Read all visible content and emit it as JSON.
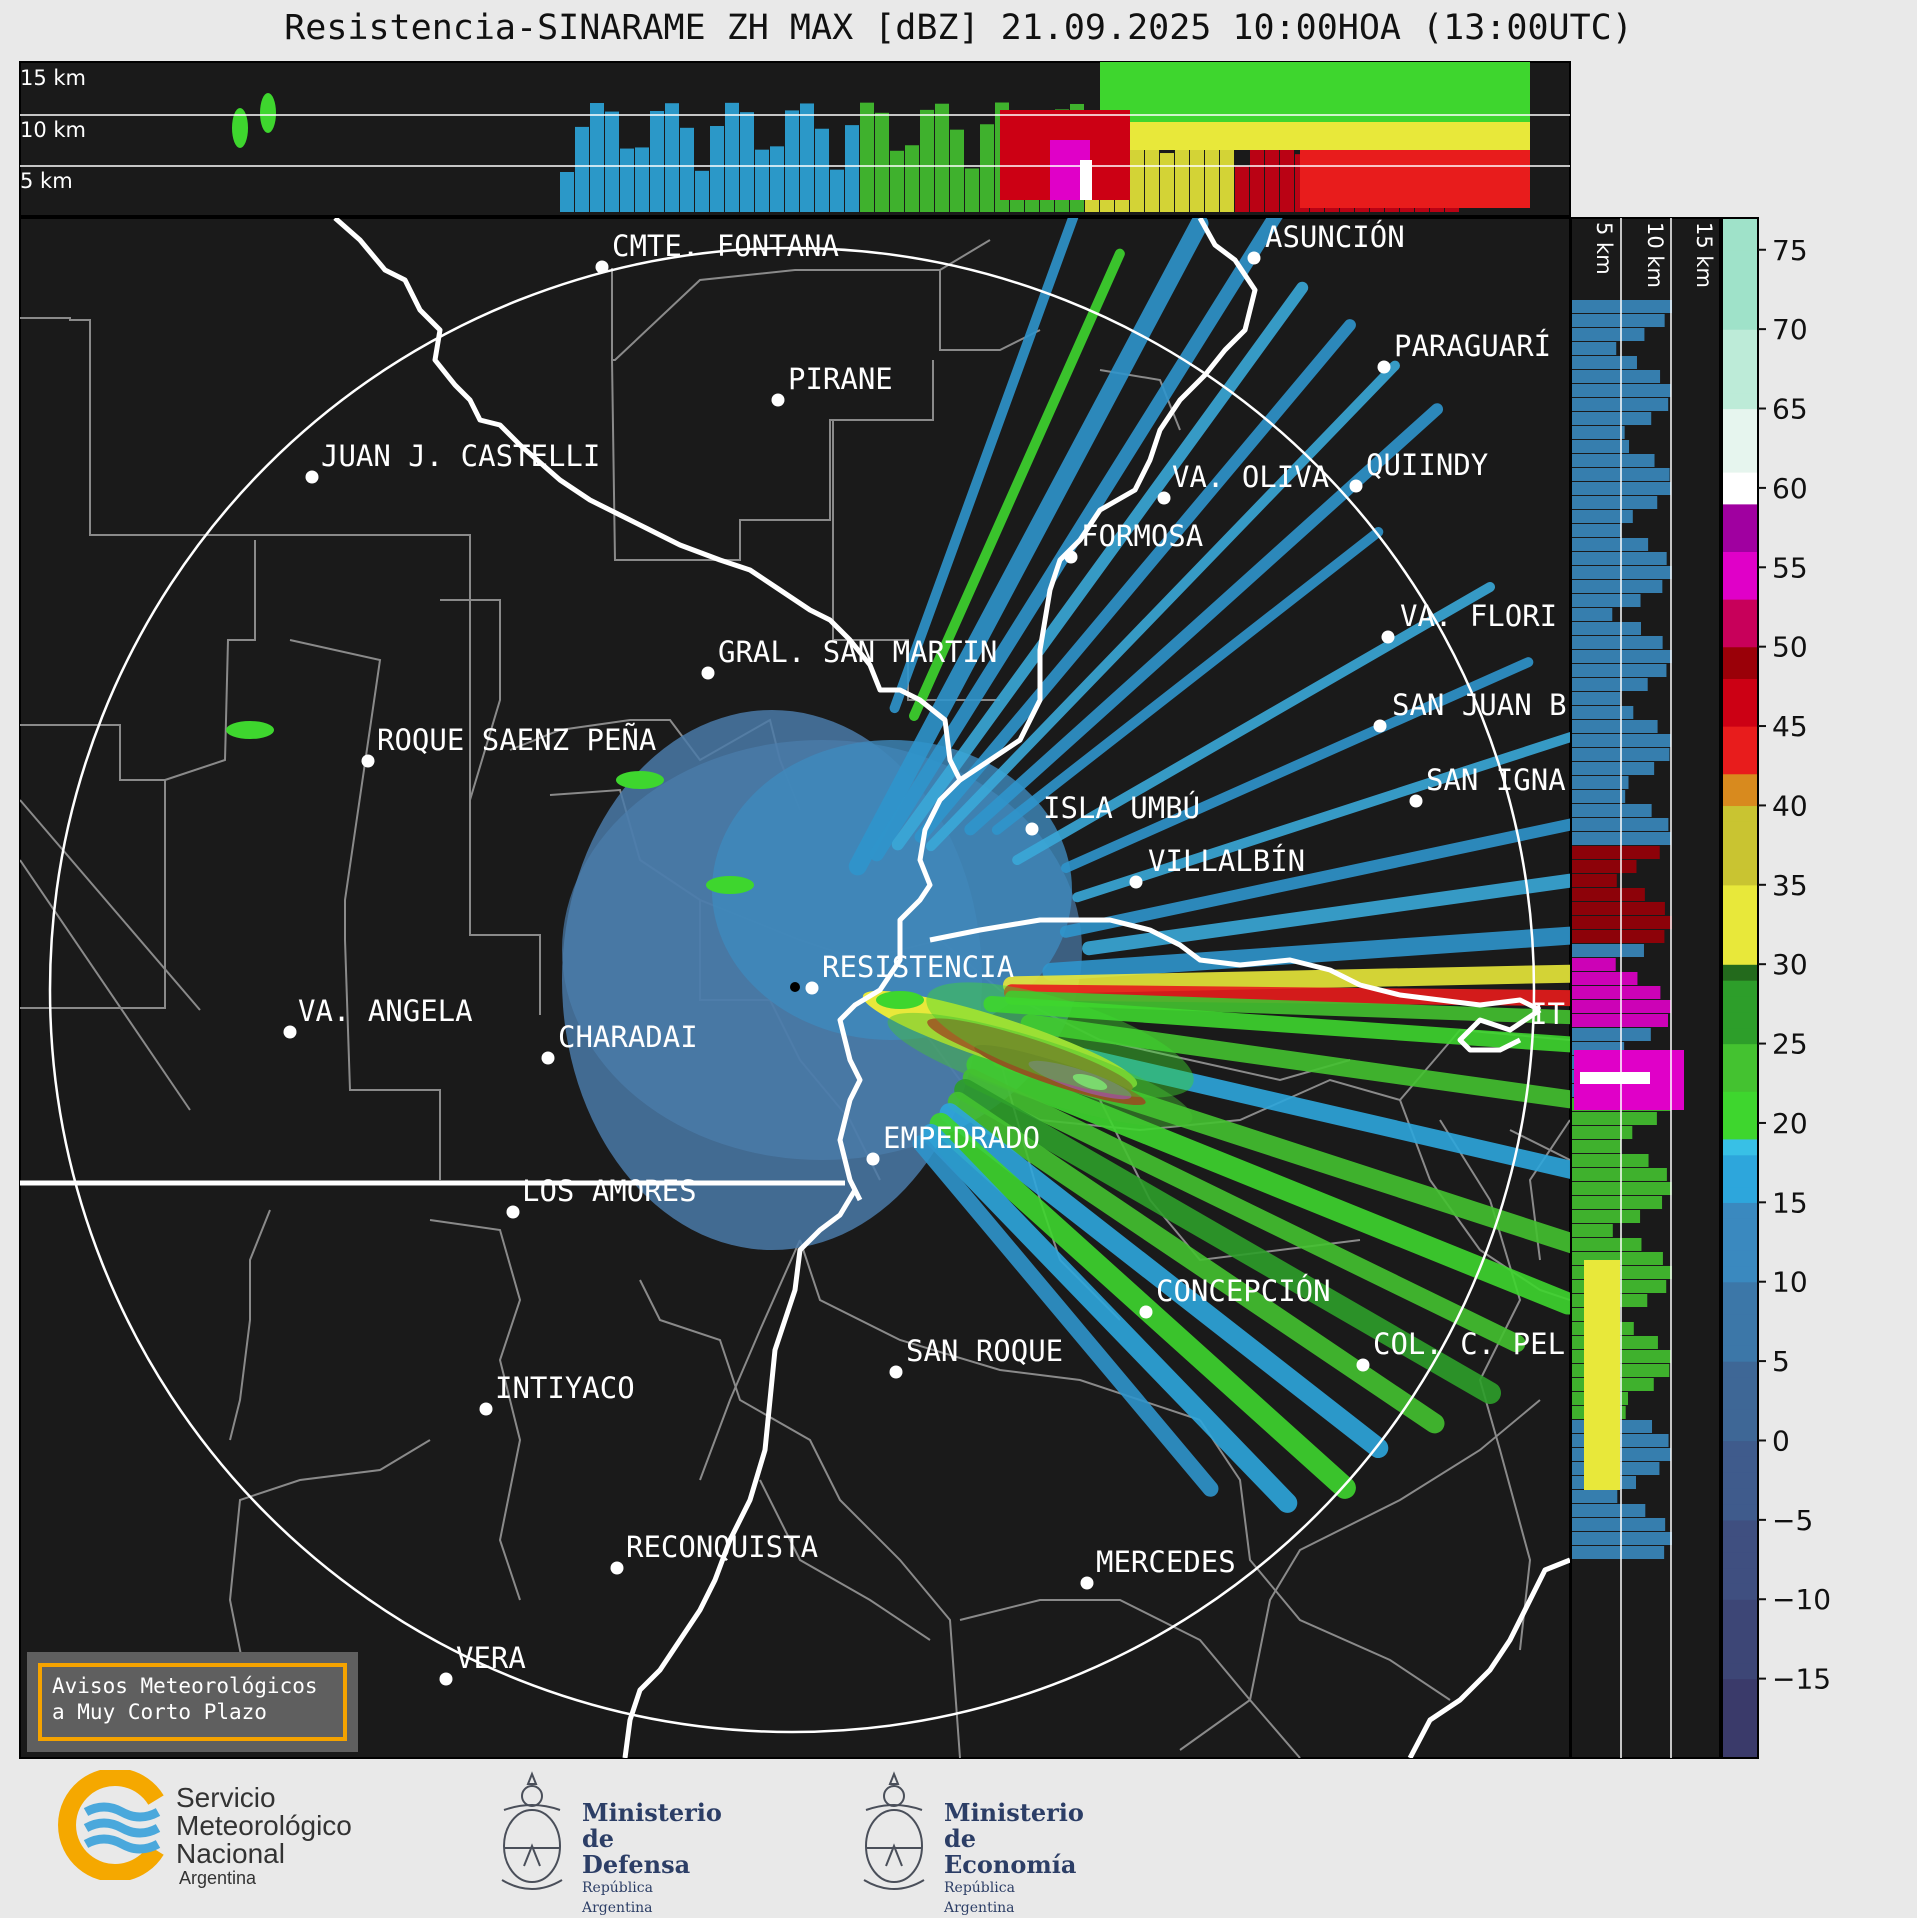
{
  "title": "Resistencia-SINARAME ZH MAX [dBZ] 21.09.2025 10:00HOA (13:00UTC)",
  "top_panel_labels": [
    "15 km",
    "10 km",
    "5 km"
  ],
  "side_panel_labels": [
    "5 km",
    "10 km",
    "15 km"
  ],
  "radar_site": "RESISTENCIA",
  "cities": [
    {
      "name": "CMTE. FONTANA"
    },
    {
      "name": "ASUNCIÓN"
    },
    {
      "name": "PARAGUARÍ"
    },
    {
      "name": "PIRANE"
    },
    {
      "name": "JUAN J. CASTELLI"
    },
    {
      "name": "VA. OLIVA"
    },
    {
      "name": "QUIINDY"
    },
    {
      "name": "FORMOSA"
    },
    {
      "name": "VA. FLORI"
    },
    {
      "name": "GRAL. SAN MARTIN"
    },
    {
      "name": "SAN JUAN B"
    },
    {
      "name": "ROQUE SAENZ PEÑA"
    },
    {
      "name": "SAN IGNA"
    },
    {
      "name": "ISLA UMBÚ"
    },
    {
      "name": "VILLALBÍN"
    },
    {
      "name": "RESISTENCIA"
    },
    {
      "name": "IT"
    },
    {
      "name": "VA. ANGELA"
    },
    {
      "name": "CHARADAI"
    },
    {
      "name": "EMPEDRADO"
    },
    {
      "name": "LOS AMORES"
    },
    {
      "name": "CONCEPCIÓN"
    },
    {
      "name": "COL. C. PEL"
    },
    {
      "name": "SAN ROQUE"
    },
    {
      "name": "INTIYACO"
    },
    {
      "name": "RECONQUISTA"
    },
    {
      "name": "MERCEDES"
    },
    {
      "name": "VERA"
    }
  ],
  "colorbar": {
    "unit": "dBZ",
    "ticks": [
      75,
      70,
      65,
      60,
      55,
      50,
      45,
      40,
      35,
      30,
      25,
      20,
      15,
      10,
      5,
      0,
      -5,
      -10,
      -15
    ],
    "tick_labels": [
      "75",
      "70",
      "65",
      "60",
      "55",
      "50",
      "45",
      "40",
      "35",
      "30",
      "25",
      "20",
      "15",
      "10",
      "5",
      "0",
      "−5",
      "−10",
      "−15"
    ],
    "range": [
      -20,
      77
    ]
  },
  "aviso": {
    "line1": "Avisos Meteorológicos",
    "line2": "a Muy Corto Plazo"
  },
  "logos": {
    "smn": {
      "line1": "Servicio",
      "line2": "Meteorológico",
      "line3": "Nacional",
      "line4": "Argentina"
    },
    "defensa": {
      "line1": "Ministerio",
      "line2": "de Defensa",
      "line3": "República Argentina"
    },
    "economia": {
      "line1": "Ministerio",
      "line2": "de Economía",
      "line3": "República Argentina"
    }
  }
}
